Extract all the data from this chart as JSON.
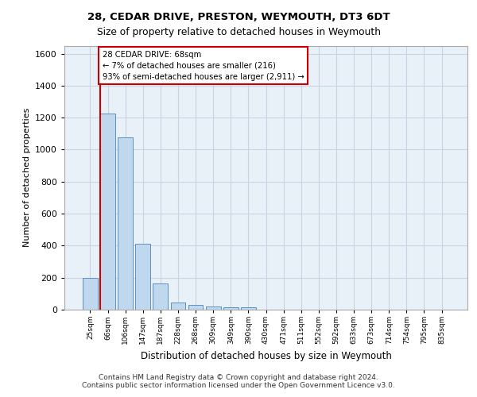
{
  "title1": "28, CEDAR DRIVE, PRESTON, WEYMOUTH, DT3 6DT",
  "title2": "Size of property relative to detached houses in Weymouth",
  "xlabel": "Distribution of detached houses by size in Weymouth",
  "ylabel": "Number of detached properties",
  "footer1": "Contains HM Land Registry data © Crown copyright and database right 2024.",
  "footer2": "Contains public sector information licensed under the Open Government Licence v3.0.",
  "categories": [
    "25sqm",
    "66sqm",
    "106sqm",
    "147sqm",
    "187sqm",
    "228sqm",
    "268sqm",
    "309sqm",
    "349sqm",
    "390sqm",
    "430sqm",
    "471sqm",
    "511sqm",
    "552sqm",
    "592sqm",
    "633sqm",
    "673sqm",
    "714sqm",
    "754sqm",
    "795sqm",
    "835sqm"
  ],
  "values": [
    200,
    1225,
    1075,
    410,
    165,
    45,
    28,
    18,
    15,
    15,
    0,
    0,
    0,
    0,
    0,
    0,
    0,
    0,
    0,
    0,
    0
  ],
  "bar_color": "#c0d8ee",
  "bar_edge_color": "#6090c0",
  "ylim": [
    0,
    1650
  ],
  "yticks": [
    0,
    200,
    400,
    600,
    800,
    1000,
    1200,
    1400,
    1600
  ],
  "property_bin_index": 1,
  "red_line_color": "#cc0000",
  "annotation_line1": "28 CEDAR DRIVE: 68sqm",
  "annotation_line2": "← 7% of detached houses are smaller (216)",
  "annotation_line3": "93% of semi-detached houses are larger (2,911) →",
  "annotation_box_edge_color": "#cc0000",
  "grid_color": "#c8d4e4",
  "plot_background": "#e8f0f8"
}
